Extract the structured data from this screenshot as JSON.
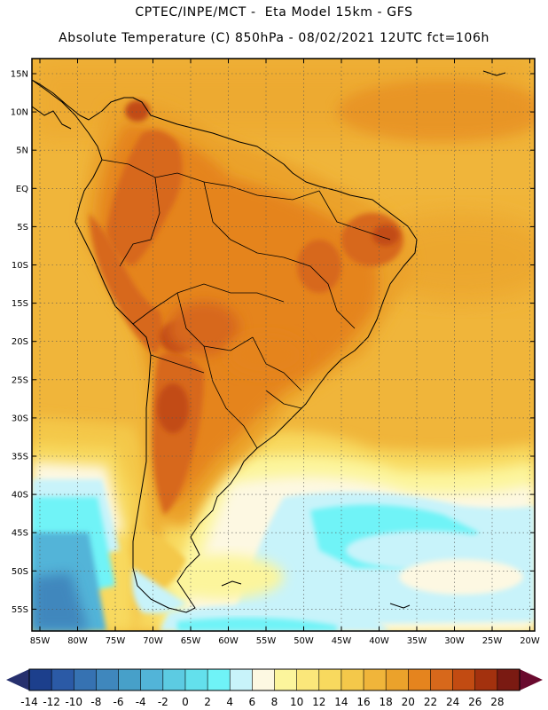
{
  "header": {
    "line1": "CPTEC/INPE/MCT -  Eta Model 15km - GFS",
    "line2": "Absolute Temperature (C) 850hPa - 08/02/2021 12UTC fct=106h"
  },
  "map": {
    "lat_labels": [
      "15N",
      "10N",
      "5N",
      "EQ",
      "5S",
      "10S",
      "15S",
      "20S",
      "25S",
      "30S",
      "35S",
      "40S",
      "45S",
      "50S",
      "55S"
    ],
    "lon_labels": [
      "85W",
      "80W",
      "75W",
      "70W",
      "65W",
      "60W",
      "55W",
      "50W",
      "45W",
      "40W",
      "35W",
      "30W",
      "25W",
      "20W"
    ]
  },
  "colorbar": {
    "labels": [
      "-14",
      "-12",
      "-10",
      "-8",
      "-6",
      "-4",
      "-2",
      "0",
      "2",
      "4",
      "6",
      "8",
      "10",
      "12",
      "14",
      "16",
      "18",
      "20",
      "22",
      "24",
      "26",
      "28"
    ],
    "colors": [
      "#1c3f8c",
      "#2b5aa6",
      "#3672b2",
      "#3f87bd",
      "#47a0c9",
      "#52b4d8",
      "#5ccbe2",
      "#63e0ec",
      "#6ff3f7",
      "#c8f3fa",
      "#fdf8e2",
      "#fcf59c",
      "#fbe77a",
      "#f8d95e",
      "#f4c84a",
      "#f0b53a",
      "#eba22b",
      "#e5841e",
      "#d7681b",
      "#c24b12",
      "#a3310e",
      "#7a1a12"
    ],
    "low_arrow_color": "#26306e",
    "high_arrow_color": "#6a0a2e"
  }
}
